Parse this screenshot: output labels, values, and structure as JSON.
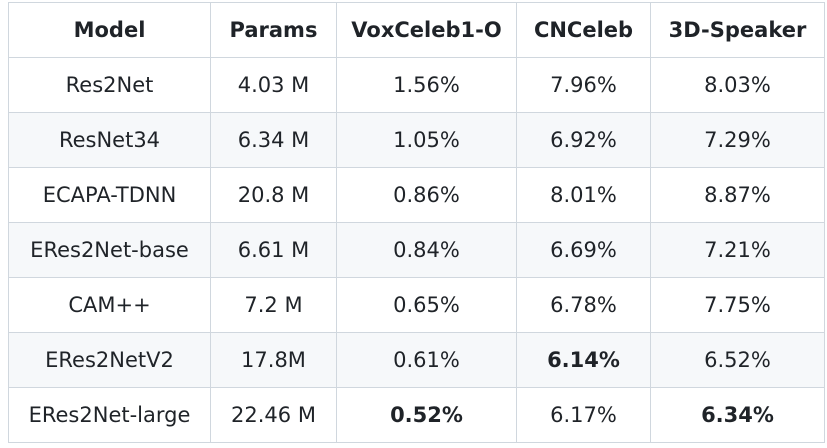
{
  "table": {
    "headers": [
      "Model",
      "Params",
      "VoxCeleb1-O",
      "CNCeleb",
      "3D-Speaker"
    ],
    "rows": [
      {
        "model": "Res2Net",
        "params": "4.03 M",
        "vox": "1.56%",
        "cn": "7.96%",
        "threed": "8.03%"
      },
      {
        "model": "ResNet34",
        "params": "6.34 M",
        "vox": "1.05%",
        "cn": "6.92%",
        "threed": "7.29%"
      },
      {
        "model": "ECAPA-TDNN",
        "params": "20.8 M",
        "vox": "0.86%",
        "cn": "8.01%",
        "threed": "8.87%"
      },
      {
        "model": "ERes2Net-base",
        "params": "6.61 M",
        "vox": "0.84%",
        "cn": "6.69%",
        "threed": "7.21%"
      },
      {
        "model": "CAM++",
        "params": "7.2 M",
        "vox": "0.65%",
        "cn": "6.78%",
        "threed": "7.75%"
      },
      {
        "model": "ERes2NetV2",
        "params": "17.8M",
        "vox": "0.61%",
        "cn": "6.14%",
        "threed": "6.52%"
      },
      {
        "model": "ERes2Net-large",
        "params": "22.46 M",
        "vox": "0.52%",
        "cn": "6.17%",
        "threed": "6.34%"
      }
    ]
  },
  "colors": {
    "border": "#d0d7de",
    "stripe": "#f6f8fa",
    "text": "#1f2328"
  }
}
